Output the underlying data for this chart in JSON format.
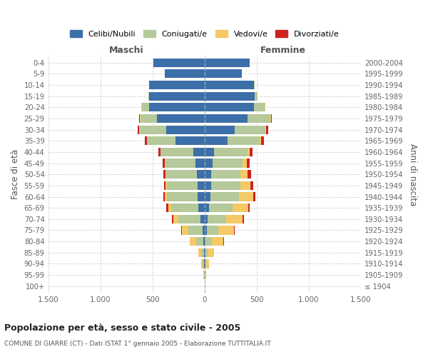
{
  "age_groups": [
    "100+",
    "95-99",
    "90-94",
    "85-89",
    "80-84",
    "75-79",
    "70-74",
    "65-69",
    "60-64",
    "55-59",
    "50-54",
    "45-49",
    "40-44",
    "35-39",
    "30-34",
    "25-29",
    "20-24",
    "15-19",
    "10-14",
    "5-9",
    "0-4"
  ],
  "birth_years": [
    "≤ 1904",
    "1905-1909",
    "1910-1914",
    "1915-1919",
    "1920-1924",
    "1925-1929",
    "1930-1934",
    "1935-1939",
    "1940-1944",
    "1945-1949",
    "1950-1954",
    "1955-1959",
    "1960-1964",
    "1965-1969",
    "1970-1974",
    "1975-1979",
    "1980-1984",
    "1985-1989",
    "1990-1994",
    "1995-1999",
    "2000-2004"
  ],
  "males": {
    "celibi": [
      0,
      2,
      5,
      8,
      10,
      20,
      40,
      60,
      70,
      70,
      75,
      85,
      110,
      280,
      370,
      460,
      530,
      530,
      530,
      380,
      490
    ],
    "coniugati": [
      0,
      5,
      15,
      25,
      70,
      135,
      210,
      260,
      290,
      290,
      290,
      290,
      310,
      270,
      250,
      155,
      70,
      10,
      5,
      0,
      0
    ],
    "vedovi": [
      0,
      5,
      15,
      30,
      60,
      60,
      50,
      30,
      20,
      15,
      10,
      8,
      5,
      5,
      5,
      5,
      5,
      0,
      0,
      0,
      0
    ],
    "divorziati": [
      0,
      0,
      0,
      0,
      5,
      10,
      15,
      15,
      15,
      15,
      20,
      20,
      20,
      20,
      15,
      10,
      5,
      0,
      0,
      0,
      0
    ]
  },
  "females": {
    "nubili": [
      0,
      3,
      5,
      10,
      10,
      20,
      30,
      40,
      55,
      65,
      65,
      75,
      90,
      220,
      290,
      410,
      470,
      480,
      470,
      360,
      430
    ],
    "coniugate": [
      0,
      5,
      10,
      20,
      60,
      110,
      175,
      225,
      275,
      275,
      280,
      290,
      320,
      310,
      290,
      220,
      105,
      30,
      10,
      0,
      0
    ],
    "vedove": [
      0,
      10,
      30,
      60,
      110,
      155,
      160,
      155,
      135,
      100,
      70,
      40,
      20,
      15,
      10,
      5,
      5,
      0,
      0,
      0,
      0
    ],
    "divorziate": [
      0,
      0,
      0,
      0,
      5,
      5,
      10,
      15,
      20,
      25,
      30,
      25,
      30,
      25,
      20,
      10,
      5,
      0,
      0,
      0,
      0
    ]
  },
  "colors": {
    "celibi": "#3d6fa8",
    "coniugati": "#b5c99a",
    "vedovi": "#f4c966",
    "divorziati": "#cc2222"
  },
  "xlim": 1500,
  "title": "Popolazione per età, sesso e stato civile - 2005",
  "subtitle": "COMUNE DI GIARRE (CT) - Dati ISTAT 1° gennaio 2005 - Elaborazione TUTTITALIA.IT",
  "xlabel_left": "Maschi",
  "xlabel_right": "Femmine",
  "ylabel_left": "Fasce di età",
  "ylabel_right": "Anni di nascita",
  "xticks": [
    -1500,
    -1000,
    -500,
    0,
    500,
    1000,
    1500
  ],
  "xtick_labels": [
    "1.500",
    "1.000",
    "500",
    "0",
    "500",
    "1.000",
    "1.500"
  ],
  "background_color": "#ffffff",
  "grid_color": "#cccccc"
}
